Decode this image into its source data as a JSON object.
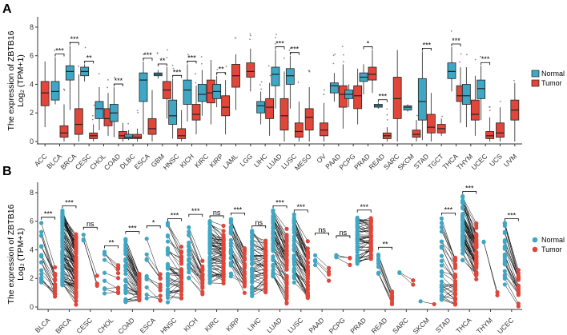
{
  "colors": {
    "normal": "#3fa7c4",
    "tumor": "#e0463a",
    "axis": "#333333",
    "outlier": "#888888"
  },
  "chart_data": [
    {
      "panel_label": "A",
      "type": "box",
      "ylabel_line1": "The expression of ZBTB16",
      "ylabel_line2": "Log₂ (TPM+1)",
      "ylim": [
        0,
        8.5
      ],
      "yticks": [
        0,
        2,
        4,
        6,
        8
      ],
      "legend": [
        "Normal",
        "Tumor"
      ],
      "cancers": [
        {
          "name": "ACC",
          "sig": "",
          "normal": null,
          "tumor": [
            1.0,
            2.5,
            3.4,
            4.2,
            5.6
          ]
        },
        {
          "name": "BLCA",
          "sig": "***",
          "normal": [
            2.6,
            2.9,
            3.5,
            4.2,
            5.9
          ],
          "tumor": [
            0,
            0.3,
            0.6,
            1.1,
            2.6
          ]
        },
        {
          "name": "BRCA",
          "sig": "***",
          "normal": [
            2.2,
            4.3,
            4.9,
            5.3,
            6.7
          ],
          "tumor": [
            0,
            0.5,
            1.2,
            2.3,
            4.7
          ]
        },
        {
          "name": "CESC",
          "sig": "**",
          "normal": [
            4.2,
            4.6,
            4.9,
            5.2,
            5.4
          ],
          "tumor": [
            0,
            0.2,
            0.4,
            0.6,
            1.2
          ]
        },
        {
          "name": "CHOL",
          "sig": "",
          "normal": [
            0.8,
            1.6,
            2.3,
            2.8,
            3.8
          ],
          "tumor": [
            0.4,
            1.1,
            1.6,
            2.3,
            3.4
          ]
        },
        {
          "name": "COAD",
          "sig": "***",
          "normal": [
            0.3,
            1.4,
            2.0,
            2.6,
            3.8
          ],
          "tumor": [
            0,
            0.2,
            0.4,
            0.7,
            1.3
          ]
        },
        {
          "name": "DLBC",
          "sig": "",
          "normal": [
            0.1,
            0.2,
            0.3,
            0.5,
            0.8
          ],
          "tumor": [
            0,
            0.2,
            0.3,
            0.5,
            0.9
          ]
        },
        {
          "name": "ESCA",
          "sig": "***",
          "normal": [
            0.5,
            2.8,
            4.3,
            4.8,
            5.6
          ],
          "tumor": [
            0,
            0.5,
            0.9,
            1.6,
            3.6
          ]
        },
        {
          "name": "GBM",
          "sig": "**",
          "normal": [
            4.4,
            4.6,
            4.7,
            4.8,
            5.0
          ],
          "tumor": [
            1.6,
            3.0,
            3.6,
            4.2,
            5.2
          ]
        },
        {
          "name": "HNSC",
          "sig": "***",
          "normal": [
            0.2,
            1.2,
            1.8,
            2.9,
            4.4
          ],
          "tumor": [
            0,
            0.2,
            0.4,
            0.9,
            2.2
          ]
        },
        {
          "name": "KICH",
          "sig": "***",
          "normal": [
            1.4,
            2.6,
            3.6,
            4.3,
            5.4
          ],
          "tumor": [
            0.5,
            1.5,
            1.9,
            2.6,
            3.9
          ]
        },
        {
          "name": "KIRC",
          "sig": "",
          "normal": [
            1.8,
            2.8,
            3.3,
            4.0,
            5.0
          ],
          "tumor": [
            1.2,
            2.7,
            3.4,
            4.3,
            5.7
          ]
        },
        {
          "name": "KIRP",
          "sig": "**",
          "normal": [
            2.4,
            3.0,
            3.5,
            4.0,
            4.6
          ],
          "tumor": [
            0.5,
            1.8,
            2.4,
            3.2,
            4.3
          ]
        },
        {
          "name": "LAML",
          "sig": "",
          "normal": null,
          "tumor": [
            2.2,
            3.8,
            4.6,
            5.4,
            6.1
          ]
        },
        {
          "name": "LGG",
          "sig": "",
          "normal": null,
          "tumor": [
            3.5,
            4.5,
            4.9,
            5.5,
            6.5
          ]
        },
        {
          "name": "LIHC",
          "sig": "",
          "normal": [
            1.2,
            2.0,
            2.5,
            2.8,
            3.5
          ],
          "tumor": [
            0.4,
            1.6,
            2.4,
            3.0,
            4.1
          ]
        },
        {
          "name": "LUAD",
          "sig": "***",
          "normal": [
            2.3,
            3.9,
            4.7,
            5.2,
            6.4
          ],
          "tumor": [
            0,
            0.8,
            1.8,
            3.0,
            4.9
          ]
        },
        {
          "name": "LUSC",
          "sig": "***",
          "normal": [
            2.3,
            4.0,
            4.6,
            5.1,
            6.0
          ],
          "tumor": [
            0,
            0.3,
            0.7,
            1.3,
            2.8
          ]
        },
        {
          "name": "MESO",
          "sig": "",
          "normal": null,
          "tumor": [
            0,
            0.8,
            1.7,
            2.3,
            3.8
          ]
        },
        {
          "name": "OV",
          "sig": "",
          "normal": null,
          "tumor": [
            0,
            0.4,
            0.8,
            1.3,
            2.7
          ]
        },
        {
          "name": "PAAD",
          "sig": "",
          "normal": [
            2.8,
            3.4,
            3.9,
            4.1,
            4.8
          ],
          "tumor": [
            0.9,
            2.4,
            3.3,
            3.9,
            5.4
          ]
        },
        {
          "name": "PCPG",
          "sig": "",
          "normal": [
            2.4,
            3.0,
            3.3,
            3.6,
            4.0
          ],
          "tumor": [
            1.2,
            2.3,
            3.2,
            3.9,
            5.1
          ]
        },
        {
          "name": "PRAD",
          "sig": "*",
          "normal": [
            3.3,
            4.2,
            4.5,
            4.8,
            5.4
          ],
          "tumor": [
            3.4,
            4.3,
            4.7,
            5.2,
            6.4
          ]
        },
        {
          "name": "READ",
          "sig": "***",
          "normal": [
            2.3,
            2.4,
            2.5,
            2.6,
            2.7
          ],
          "tumor": [
            0,
            0.2,
            0.4,
            0.6,
            1.0
          ]
        },
        {
          "name": "SARC",
          "sig": "",
          "normal": null,
          "tumor": [
            0,
            1.6,
            3.0,
            4.5,
            6.4
          ]
        },
        {
          "name": "SKCM",
          "sig": "",
          "normal": [
            2.1,
            2.2,
            2.4,
            2.5,
            2.6
          ],
          "tumor": [
            0,
            0.3,
            0.5,
            0.8,
            1.5
          ]
        },
        {
          "name": "STAD",
          "sig": "***",
          "normal": [
            0.1,
            1.5,
            2.8,
            4.4,
            6.3
          ],
          "tumor": [
            0,
            0.6,
            1.0,
            1.9,
            3.4
          ]
        },
        {
          "name": "TGCT",
          "sig": "",
          "normal": null,
          "tumor": [
            0.4,
            0.6,
            0.9,
            1.2,
            1.6
          ]
        },
        {
          "name": "THCA",
          "sig": "***",
          "normal": [
            3.5,
            4.4,
            4.9,
            5.5,
            6.6
          ],
          "tumor": [
            1.3,
            2.8,
            3.2,
            3.9,
            5.2
          ]
        },
        {
          "name": "THYM",
          "sig": "",
          "normal": [
            1.0,
            2.6,
            3.2,
            4.0,
            5.2
          ],
          "tumor": [
            0.4,
            1.5,
            1.9,
            2.9,
            4.6
          ]
        },
        {
          "name": "UCEC",
          "sig": "***",
          "normal": [
            1.5,
            3.0,
            3.7,
            4.3,
            5.3
          ],
          "tumor": [
            0,
            0.2,
            0.4,
            0.7,
            1.7
          ]
        },
        {
          "name": "UCS",
          "sig": "",
          "normal": null,
          "tumor": [
            0,
            0.3,
            0.6,
            1.3,
            2.4
          ]
        },
        {
          "name": "UVM",
          "sig": "",
          "normal": null,
          "tumor": [
            0,
            1.5,
            2.2,
            2.9,
            4.1
          ]
        }
      ]
    },
    {
      "panel_label": "B",
      "type": "paired",
      "ylabel_line1": "The expression of ZBTB16",
      "ylabel_line2": "Log₂ (TPM+1)",
      "ylim": [
        0,
        8.5
      ],
      "yticks": [
        0,
        2,
        4,
        6,
        8
      ],
      "legend": [
        "Normal",
        "Tumor"
      ],
      "cancers": [
        {
          "name": "BLCA",
          "sig": "***",
          "n": 19,
          "nRange": [
            1.5,
            6.0
          ],
          "tRange": [
            0,
            3.3
          ]
        },
        {
          "name": "BRCA",
          "sig": "***",
          "n": 100,
          "nRange": [
            1.5,
            6.8
          ],
          "tRange": [
            0,
            5.5
          ]
        },
        {
          "name": "CESC",
          "sig": "ns",
          "n": 3,
          "nRange": [
            4.5,
            5.3
          ],
          "tRange": [
            0,
            4.2
          ]
        },
        {
          "name": "CHOL",
          "sig": "**",
          "n": 9,
          "nRange": [
            0.9,
            4.0
          ],
          "tRange": [
            0.4,
            3.2
          ]
        },
        {
          "name": "COAD",
          "sig": "***",
          "n": 40,
          "nRange": [
            0.3,
            5.0
          ],
          "tRange": [
            0,
            2.6
          ]
        },
        {
          "name": "ESCA",
          "sig": "*",
          "n": 10,
          "nRange": [
            0.3,
            5.4
          ],
          "tRange": [
            0,
            3.0
          ]
        },
        {
          "name": "HNSC",
          "sig": "***",
          "n": 40,
          "nRange": [
            0.3,
            5.9
          ],
          "tRange": [
            0,
            4.8
          ]
        },
        {
          "name": "KICH",
          "sig": "***",
          "n": 23,
          "nRange": [
            1.5,
            6.2
          ],
          "tRange": [
            0.4,
            3.9
          ]
        },
        {
          "name": "KIRC",
          "sig": "ns",
          "n": 70,
          "nRange": [
            1.6,
            6.1
          ],
          "tRange": [
            1.2,
            5.8
          ]
        },
        {
          "name": "KIRP",
          "sig": "***",
          "n": 32,
          "nRange": [
            2.1,
            6.3
          ],
          "tRange": [
            0.4,
            4.6
          ]
        },
        {
          "name": "LIHC",
          "sig": "ns",
          "n": 50,
          "nRange": [
            0.5,
            5.4
          ],
          "tRange": [
            0.4,
            5.1
          ]
        },
        {
          "name": "LUAD",
          "sig": "***",
          "n": 57,
          "nRange": [
            2.0,
            6.8
          ],
          "tRange": [
            0,
            5.6
          ]
        },
        {
          "name": "LUSC",
          "sig": "***",
          "n": 50,
          "nRange": [
            1.6,
            6.5
          ],
          "tRange": [
            0,
            4.9
          ]
        },
        {
          "name": "PAAD",
          "sig": "ns",
          "n": 4,
          "nRange": [
            2.3,
            4.9
          ],
          "tRange": [
            1.3,
            4.3
          ]
        },
        {
          "name": "PCPG",
          "sig": "ns",
          "n": 3,
          "nRange": [
            2.9,
            4.0
          ],
          "tRange": [
            1.6,
            4.7
          ]
        },
        {
          "name": "PRAD",
          "sig": "***",
          "n": 52,
          "nRange": [
            3.0,
            6.3
          ],
          "tRange": [
            3.0,
            6.5
          ]
        },
        {
          "name": "READ",
          "sig": "**",
          "n": 9,
          "nRange": [
            1.9,
            3.9
          ],
          "tRange": [
            0,
            1.2
          ]
        },
        {
          "name": "SARC",
          "sig": "",
          "n": 2,
          "nRange": [
            1.9,
            2.8
          ],
          "tRange": [
            0.6,
            2.7
          ]
        },
        {
          "name": "SKCM",
          "sig": "",
          "n": 1,
          "nRange": [
            0.4,
            0.4
          ],
          "tRange": [
            0.2,
            0.2
          ]
        },
        {
          "name": "STAD",
          "sig": "***",
          "n": 32,
          "nRange": [
            0.5,
            6.3
          ],
          "tRange": [
            0,
            4.4
          ]
        },
        {
          "name": "THCA",
          "sig": "***",
          "n": 59,
          "nRange": [
            3.2,
            7.8
          ],
          "tRange": [
            1.0,
            6.2
          ]
        },
        {
          "name": "THYM",
          "sig": "",
          "n": 2,
          "nRange": [
            3.6,
            5.0
          ],
          "tRange": [
            0.3,
            1.3
          ]
        },
        {
          "name": "UCEC",
          "sig": "***",
          "n": 23,
          "nRange": [
            1.5,
            5.9
          ],
          "tRange": [
            0,
            2.9
          ]
        }
      ]
    }
  ]
}
